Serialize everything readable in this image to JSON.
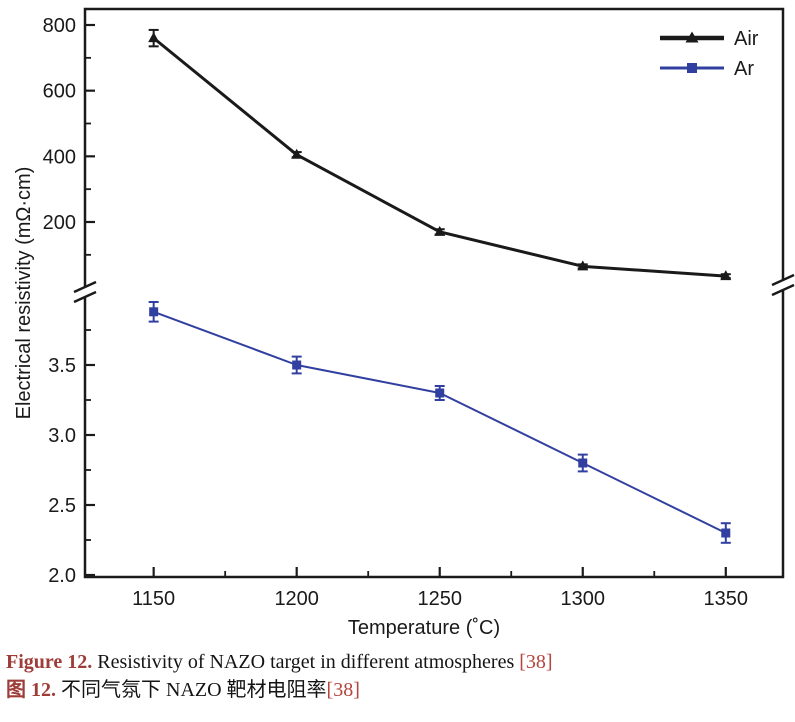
{
  "figure": {
    "caption_en": {
      "label": "Figure 12.",
      "text": " Resistivity of NAZO target in different atmospheres ",
      "ref": "[38]"
    },
    "caption_zh": {
      "label": "图 12.",
      "text": " 不同气氛下 NAZO 靶材电阻率",
      "ref": "[38]"
    }
  },
  "colors": {
    "air_series": "#1a1a1a",
    "ar_series": "#3140a0",
    "caption_label": "#9e3c38",
    "caption_ref": "#b5443e"
  },
  "chart_data": {
    "type": "line",
    "title": "",
    "xlabel": "Temperature (˚C)",
    "ylabel": "Electrical resistivity (mΩ·cm)",
    "broken_y_axis": true,
    "grid": false,
    "legend_position": "top-right",
    "x": [
      1150,
      1200,
      1250,
      1300,
      1350
    ],
    "xlim": [
      1126,
      1370
    ],
    "x_major_ticks": [
      1150,
      1200,
      1250,
      1300,
      1350
    ],
    "x_minor_ticks": [
      1175,
      1225,
      1275,
      1325
    ],
    "top_segment": {
      "unit": "mΩ·cm",
      "tick_values": [
        800,
        600,
        400,
        200
      ],
      "tick_labels": [
        "800",
        "600",
        "400",
        "200"
      ],
      "minor_ticks": [
        700,
        500,
        300,
        100
      ],
      "approx_range": [
        20,
        849
      ]
    },
    "bottom_segment": {
      "unit": "mΩ·cm",
      "tick_values": [
        3.5,
        3.0,
        2.5,
        2.0
      ],
      "tick_labels": [
        "3.5",
        "3.0",
        "2.5",
        "2.0"
      ],
      "minor_ticks": [
        3.75,
        3.25,
        2.75,
        2.25
      ],
      "approx_range": [
        1.98,
        3.94
      ]
    },
    "series": [
      {
        "name": "Air",
        "color": "#1a1a1a",
        "marker": "triangle",
        "segment": "top",
        "line_width": 3,
        "values": [
          760,
          405,
          170,
          65,
          35
        ],
        "errors": [
          25,
          8,
          8,
          6,
          6
        ]
      },
      {
        "name": "Ar",
        "color": "#3140a0",
        "marker": "square",
        "segment": "bottom",
        "line_width": 2,
        "values": [
          3.88,
          3.5,
          3.3,
          2.8,
          2.3
        ],
        "errors": [
          0.07,
          0.06,
          0.05,
          0.06,
          0.07
        ]
      }
    ]
  }
}
